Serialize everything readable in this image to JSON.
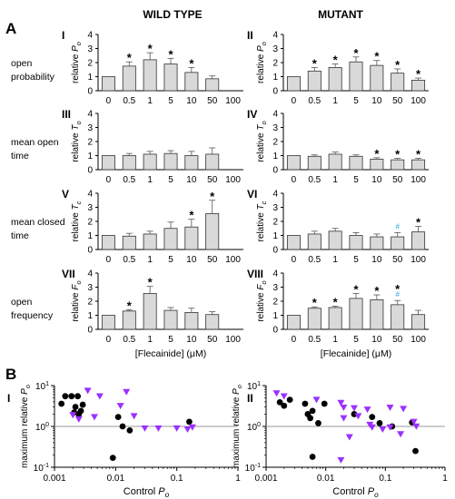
{
  "panel_letters": {
    "a": "A",
    "b": "B"
  },
  "column_headers": {
    "wild": "WILD TYPE",
    "mutant": "MUTANT"
  },
  "row_labels": [
    [
      "open",
      "probability"
    ],
    [
      "mean open",
      "time"
    ],
    [
      "mean closed",
      "time"
    ],
    [
      "open",
      "frequency"
    ]
  ],
  "colors": {
    "bar_fill": "#d9d9d9",
    "bar_stroke": "#333333",
    "wt_marker": "#000000",
    "mutant_marker": "#9b30ff",
    "hash_mark": "#29a8e0",
    "reference_line": "#9a9a9a"
  },
  "chart_data": [
    {
      "type": "bar",
      "panel": "I",
      "group": "WILD TYPE",
      "ylabel": "relative P_o",
      "ylim": [
        0,
        4
      ],
      "yticks": [
        0,
        1,
        2,
        3,
        4
      ],
      "categories": [
        "0",
        "0.5",
        "1",
        "5",
        "10",
        "50",
        "100"
      ],
      "values": [
        1.0,
        1.75,
        2.2,
        1.9,
        1.3,
        0.85,
        null
      ],
      "errors": [
        0,
        0.3,
        0.5,
        0.4,
        0.35,
        0.2,
        null
      ],
      "marks": [
        "",
        "*",
        "*",
        "*",
        "*",
        "",
        ""
      ]
    },
    {
      "type": "bar",
      "panel": "II",
      "group": "MUTANT",
      "ylabel": "relative P_o",
      "ylim": [
        0,
        4
      ],
      "yticks": [
        0,
        1,
        2,
        3,
        4
      ],
      "categories": [
        "0",
        "0.5",
        "1",
        "5",
        "10",
        "50",
        "100"
      ],
      "values": [
        1.0,
        1.4,
        1.65,
        2.05,
        1.8,
        1.25,
        0.75
      ],
      "errors": [
        0,
        0.25,
        0.25,
        0.35,
        0.35,
        0.3,
        0.15
      ],
      "marks": [
        "",
        "*",
        "*",
        "*",
        "*",
        "*",
        "*"
      ]
    },
    {
      "type": "bar",
      "panel": "III",
      "group": "WILD TYPE",
      "ylabel": "relative T_o",
      "ylim": [
        0,
        4
      ],
      "yticks": [
        0,
        1,
        2,
        3,
        4
      ],
      "categories": [
        "0",
        "0.5",
        "1",
        "5",
        "10",
        "50",
        "100"
      ],
      "values": [
        1.0,
        1.0,
        1.1,
        1.15,
        1.0,
        1.1,
        null
      ],
      "errors": [
        0,
        0.15,
        0.2,
        0.2,
        0.3,
        0.45,
        null
      ],
      "marks": [
        "",
        "",
        "",
        "",
        "",
        "",
        ""
      ]
    },
    {
      "type": "bar",
      "panel": "IV",
      "group": "MUTANT",
      "ylabel": "relative T_o",
      "ylim": [
        0,
        4
      ],
      "yticks": [
        0,
        1,
        2,
        3,
        4
      ],
      "categories": [
        "0",
        "0.5",
        "1",
        "5",
        "10",
        "50",
        "100"
      ],
      "values": [
        1.0,
        0.95,
        1.1,
        0.95,
        0.75,
        0.7,
        0.7
      ],
      "errors": [
        0,
        0.1,
        0.15,
        0.1,
        0.1,
        0.1,
        0.1
      ],
      "marks": [
        "",
        "",
        "",
        "",
        "*",
        "*",
        "*"
      ]
    },
    {
      "type": "bar",
      "panel": "V",
      "group": "WILD TYPE",
      "ylabel": "relative T_c",
      "ylim": [
        0,
        4
      ],
      "yticks": [
        0,
        1,
        2,
        3,
        4
      ],
      "categories": [
        "0",
        "0.5",
        "1",
        "5",
        "10",
        "50",
        "100"
      ],
      "values": [
        1.0,
        0.95,
        1.1,
        1.5,
        1.6,
        2.55,
        null
      ],
      "errors": [
        0,
        0.2,
        0.2,
        0.45,
        0.55,
        0.95,
        null
      ],
      "marks": [
        "",
        "",
        "",
        "",
        "*",
        "*",
        ""
      ]
    },
    {
      "type": "bar",
      "panel": "VI",
      "group": "MUTANT",
      "ylabel": "relative T_c",
      "ylim": [
        0,
        4
      ],
      "yticks": [
        0,
        1,
        2,
        3,
        4
      ],
      "categories": [
        "0",
        "0.5",
        "1",
        "5",
        "10",
        "50",
        "100"
      ],
      "values": [
        1.0,
        1.1,
        1.3,
        1.0,
        0.9,
        0.9,
        1.25
      ],
      "errors": [
        0,
        0.2,
        0.2,
        0.2,
        0.2,
        0.3,
        0.4
      ],
      "marks": [
        "",
        "",
        "",
        "",
        "",
        "#",
        "*"
      ]
    },
    {
      "type": "bar",
      "panel": "VII",
      "group": "WILD TYPE",
      "ylabel": "relative F_o",
      "ylim": [
        0,
        4
      ],
      "yticks": [
        0,
        1,
        2,
        3,
        4
      ],
      "categories": [
        "0",
        "0.5",
        "1",
        "5",
        "10",
        "50",
        "100"
      ],
      "values": [
        1.0,
        1.3,
        2.55,
        1.35,
        1.2,
        1.05,
        null
      ],
      "errors": [
        0,
        0.1,
        0.5,
        0.2,
        0.3,
        0.2,
        null
      ],
      "marks": [
        "",
        "*",
        "*",
        "",
        "",
        "",
        ""
      ]
    },
    {
      "type": "bar",
      "panel": "VIII",
      "group": "MUTANT",
      "ylabel": "relative F_o",
      "ylim": [
        0,
        4
      ],
      "yticks": [
        0,
        1,
        2,
        3,
        4
      ],
      "categories": [
        "0",
        "0.5",
        "1",
        "5",
        "10",
        "50",
        "100"
      ],
      "values": [
        1.0,
        1.5,
        1.55,
        2.2,
        2.1,
        1.75,
        1.05
      ],
      "errors": [
        0,
        0.1,
        0.1,
        0.35,
        0.35,
        0.3,
        0.3
      ],
      "marks": [
        "",
        "*",
        "*",
        "*",
        "*",
        "*#",
        ""
      ],
      "xlabel": "[Flecainide] (μM)"
    },
    {
      "type": "scatter",
      "panel": "I",
      "xlabel": "Control P_o",
      "ylabel": "maximum relative P_o",
      "xscale": "log",
      "yscale": "log",
      "xlim": [
        0.001,
        1
      ],
      "ylim": [
        0.1,
        10
      ],
      "xticks": [
        "0.001",
        "0.01",
        "0.1",
        "1"
      ],
      "yticks": [
        "10^-1",
        "10^0",
        "10^1"
      ],
      "reference_line_y": 1,
      "series": [
        {
          "marker": "circle",
          "points": [
            [
              0.0013,
              3.6
            ],
            [
              0.0015,
              5.5
            ],
            [
              0.0019,
              5.5
            ],
            [
              0.0021,
              2.2
            ],
            [
              0.0022,
              3.0
            ],
            [
              0.0024,
              5.5
            ],
            [
              0.0025,
              2.0
            ],
            [
              0.0027,
              2.4
            ],
            [
              0.0029,
              3.4
            ],
            [
              0.011,
              1.7
            ],
            [
              0.013,
              1.0
            ],
            [
              0.017,
              0.8
            ],
            [
              0.009,
              0.17
            ],
            [
              0.16,
              1.3
            ]
          ]
        },
        {
          "marker": "triangle-down",
          "points": [
            [
              0.0035,
              7.5
            ],
            [
              0.0055,
              5.5
            ],
            [
              0.002,
              1.9
            ],
            [
              0.0025,
              1.5
            ],
            [
              0.0045,
              1.7
            ],
            [
              0.015,
              7.0
            ],
            [
              0.012,
              3.2
            ],
            [
              0.02,
              1.8
            ],
            [
              0.03,
              0.9
            ],
            [
              0.05,
              0.9
            ],
            [
              0.1,
              0.9
            ],
            [
              0.18,
              0.95
            ],
            [
              0.15,
              0.85
            ]
          ]
        }
      ]
    },
    {
      "type": "scatter",
      "panel": "II",
      "xlabel": "Control P_o",
      "ylabel": "maximum relative P_o",
      "xscale": "log",
      "yscale": "log",
      "xlim": [
        0.001,
        1
      ],
      "ylim": [
        0.1,
        10
      ],
      "xticks": [
        "0.001",
        "0.01",
        "0.1",
        "1"
      ],
      "yticks": [
        "10^-1",
        "10^0",
        "10^1"
      ],
      "reference_line_y": 1,
      "series": [
        {
          "marker": "circle",
          "points": [
            [
              0.0017,
              3.9
            ],
            [
              0.002,
              3.2
            ],
            [
              0.0025,
              4.5
            ],
            [
              0.0045,
              3.6
            ],
            [
              0.005,
              2.0
            ],
            [
              0.0055,
              1.6
            ],
            [
              0.006,
              2.4
            ],
            [
              0.006,
              0.18
            ],
            [
              0.0075,
              1.2
            ],
            [
              0.0095,
              3.6
            ],
            [
              0.03,
              2.0
            ],
            [
              0.06,
              1.7
            ],
            [
              0.08,
              1.2
            ],
            [
              0.13,
              1.0
            ],
            [
              0.28,
              1.25
            ],
            [
              0.32,
              0.25
            ]
          ]
        },
        {
          "marker": "triangle-down",
          "points": [
            [
              0.0015,
              6.5
            ],
            [
              0.002,
              5.5
            ],
            [
              0.007,
              4.5
            ],
            [
              0.018,
              3.8
            ],
            [
              0.02,
              2.9
            ],
            [
              0.02,
              1.6
            ],
            [
              0.025,
              0.55
            ],
            [
              0.03,
              2.8
            ],
            [
              0.035,
              1.8
            ],
            [
              0.05,
              2.6
            ],
            [
              0.055,
              1.1
            ],
            [
              0.06,
              0.95
            ],
            [
              0.09,
              0.85
            ],
            [
              0.12,
              0.95
            ],
            [
              0.12,
              2.9
            ],
            [
              0.18,
              0.65
            ],
            [
              0.2,
              2.7
            ],
            [
              0.3,
              1.3
            ],
            [
              0.33,
              1.0
            ],
            [
              0.018,
              0.15
            ]
          ]
        }
      ]
    }
  ]
}
